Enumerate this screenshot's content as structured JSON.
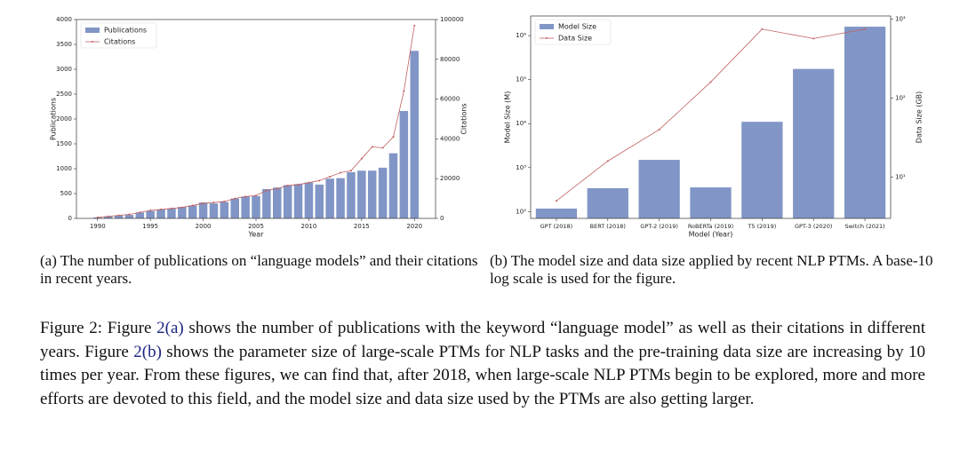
{
  "chart_data": [
    {
      "type": "combo",
      "x": [
        1990,
        1991,
        1992,
        1993,
        1994,
        1995,
        1996,
        1997,
        1998,
        1999,
        2000,
        2001,
        2002,
        2003,
        2004,
        2005,
        2006,
        2007,
        2008,
        2009,
        2010,
        2011,
        2012,
        2013,
        2014,
        2015,
        2016,
        2017,
        2018,
        2019,
        2020
      ],
      "xlim": [
        1988,
        2022
      ],
      "xticks": [
        1990,
        1995,
        2000,
        2005,
        2010,
        2015,
        2020
      ],
      "xlabel": "Year",
      "ylabel": "Publications",
      "y2label": "Citations",
      "ylim": [
        0,
        4000
      ],
      "yticks": [
        0,
        500,
        1000,
        1500,
        2000,
        2500,
        3000,
        3500,
        4000
      ],
      "y2lim": [
        0,
        100000
      ],
      "y2ticks": [
        0,
        20000,
        40000,
        60000,
        80000,
        100000
      ],
      "legend": "upper left",
      "series": [
        {
          "name": "Publications",
          "kind": "bar",
          "color": "#8196c6",
          "values": [
            20,
            40,
            60,
            70,
            120,
            150,
            180,
            200,
            230,
            260,
            320,
            300,
            330,
            400,
            440,
            450,
            590,
            620,
            670,
            690,
            720,
            680,
            800,
            810,
            930,
            960,
            960,
            1020,
            1310,
            2160,
            3370
          ]
        },
        {
          "name": "Citations",
          "kind": "line",
          "axis": "y2",
          "color": "#c0605f",
          "values": [
            500,
            1000,
            1500,
            2000,
            3000,
            4000,
            4500,
            5000,
            5500,
            6500,
            7500,
            8000,
            8500,
            10000,
            11000,
            11500,
            14000,
            15000,
            16500,
            17000,
            18000,
            19000,
            21000,
            23000,
            24000,
            30000,
            36000,
            35500,
            41000,
            64000,
            97000
          ]
        }
      ]
    },
    {
      "type": "combo",
      "categories": [
        "GPT (2018)",
        "BERT (2018)",
        "GPT-2 (2019)",
        "RoBERTa (2019)",
        "T5 (2019)",
        "GPT-3 (2020)",
        "Switch (2021)"
      ],
      "xlabel": "Model (Year)",
      "ylabel": "Model Size (M)",
      "y2label": "Data Size (GB)",
      "yscale": "log",
      "ylim": [
        70,
        2800000
      ],
      "yticks": [
        {
          "value": 100,
          "label": "10²"
        },
        {
          "value": 1000,
          "label": "10³"
        },
        {
          "value": 10000,
          "label": "10⁴"
        },
        {
          "value": 100000,
          "label": "10⁵"
        },
        {
          "value": 1000000,
          "label": "10⁶"
        }
      ],
      "y2scale": "log",
      "y2lim": [
        3,
        1100
      ],
      "y2ticks": [
        {
          "value": 10,
          "label": "10¹"
        },
        {
          "value": 100,
          "label": "10²"
        },
        {
          "value": 1000,
          "label": "10³"
        }
      ],
      "legend": "upper left",
      "series": [
        {
          "name": "Model Size",
          "kind": "bar",
          "color": "#8196c6",
          "values": [
            117,
            340,
            1500,
            355,
            11000,
            175000,
            1600000
          ]
        },
        {
          "name": "Data Size",
          "kind": "line",
          "axis": "y2",
          "color": "#c0605f",
          "values": [
            5,
            16,
            40,
            160,
            750,
            570,
            750
          ]
        }
      ]
    }
  ],
  "subcaptions": [
    "(a) The number of publications on “language models” and their citations in recent years.",
    "(b) The model size and data size applied by recent NLP PTMs. A base-10 log scale is used for the figure."
  ],
  "figure_caption": [
    "Figure 2: Figure ",
    "2(a)",
    " shows the number of publications with the keyword “language model” as well as their citations in different years. Figure ",
    "2(b)",
    " shows the parameter size of large-scale PTMs for NLP tasks and the pre-training data size are increasing by 10 times per year. From these figures, we can find that, after 2018, when large-scale NLP PTMs begin to be explored, more and more efforts are devoted to this field, and the model size and data size used by the PTMs are also getting larger."
  ]
}
